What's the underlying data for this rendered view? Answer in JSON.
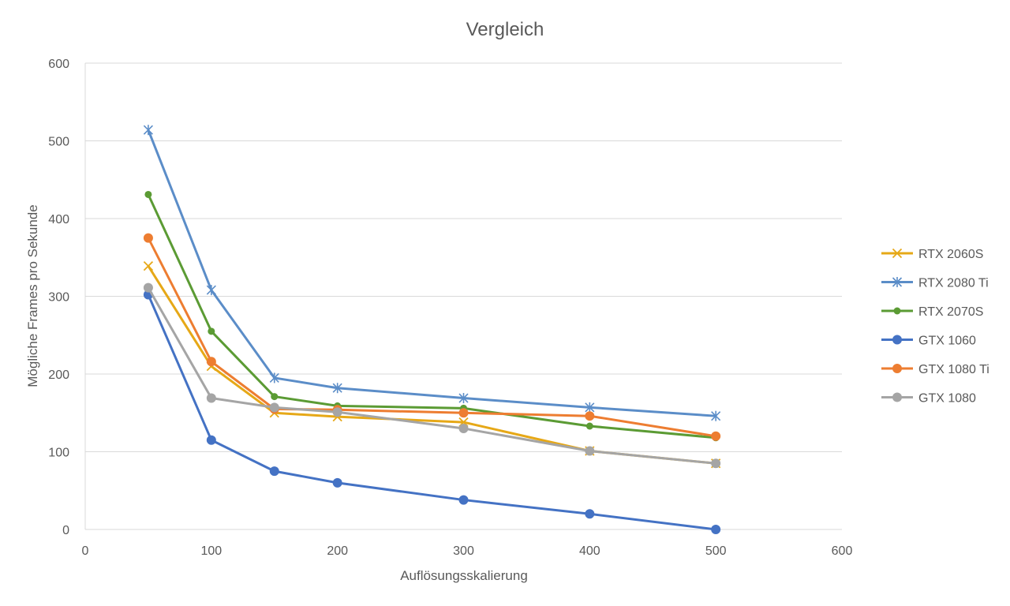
{
  "chart_data": {
    "type": "scatter",
    "title": "Vergleich",
    "xlabel": "Auflösungsskalierung",
    "ylabel": "Mögliche Frames pro Sekunde",
    "xlim": [
      0,
      600
    ],
    "ylim": [
      0,
      600
    ],
    "x_ticks": [
      "0",
      "100",
      "200",
      "300",
      "400",
      "500",
      "600"
    ],
    "y_ticks": [
      "0",
      "100",
      "200",
      "300",
      "400",
      "500",
      "600"
    ],
    "grid": "horizontal",
    "legend_position": "right",
    "x": [
      50,
      100,
      150,
      200,
      300,
      400,
      500
    ],
    "series": [
      {
        "name": "RTX 2060S",
        "color": "#E6A817",
        "marker": "x",
        "values": [
          339,
          210,
          150,
          145,
          138,
          101,
          85
        ]
      },
      {
        "name": "RTX 2080 Ti",
        "color": "#5B8DC8",
        "marker": "asterisk",
        "values": [
          514,
          308,
          195,
          182,
          169,
          157,
          146
        ]
      },
      {
        "name": "RTX 2070S",
        "color": "#5B9B34",
        "marker": "dot",
        "values": [
          431,
          255,
          171,
          159,
          156,
          133,
          118
        ]
      },
      {
        "name": "GTX 1060",
        "color": "#4472C4",
        "marker": "circle",
        "values": [
          302,
          115,
          75,
          60,
          38,
          20,
          0
        ]
      },
      {
        "name": "GTX 1080 Ti",
        "color": "#ED7D31",
        "marker": "circle",
        "values": [
          375,
          216,
          155,
          154,
          150,
          146,
          120
        ]
      },
      {
        "name": "GTX 1080",
        "color": "#A5A5A5",
        "marker": "circle",
        "values": [
          311,
          169,
          157,
          151,
          130,
          101,
          85
        ]
      }
    ]
  }
}
